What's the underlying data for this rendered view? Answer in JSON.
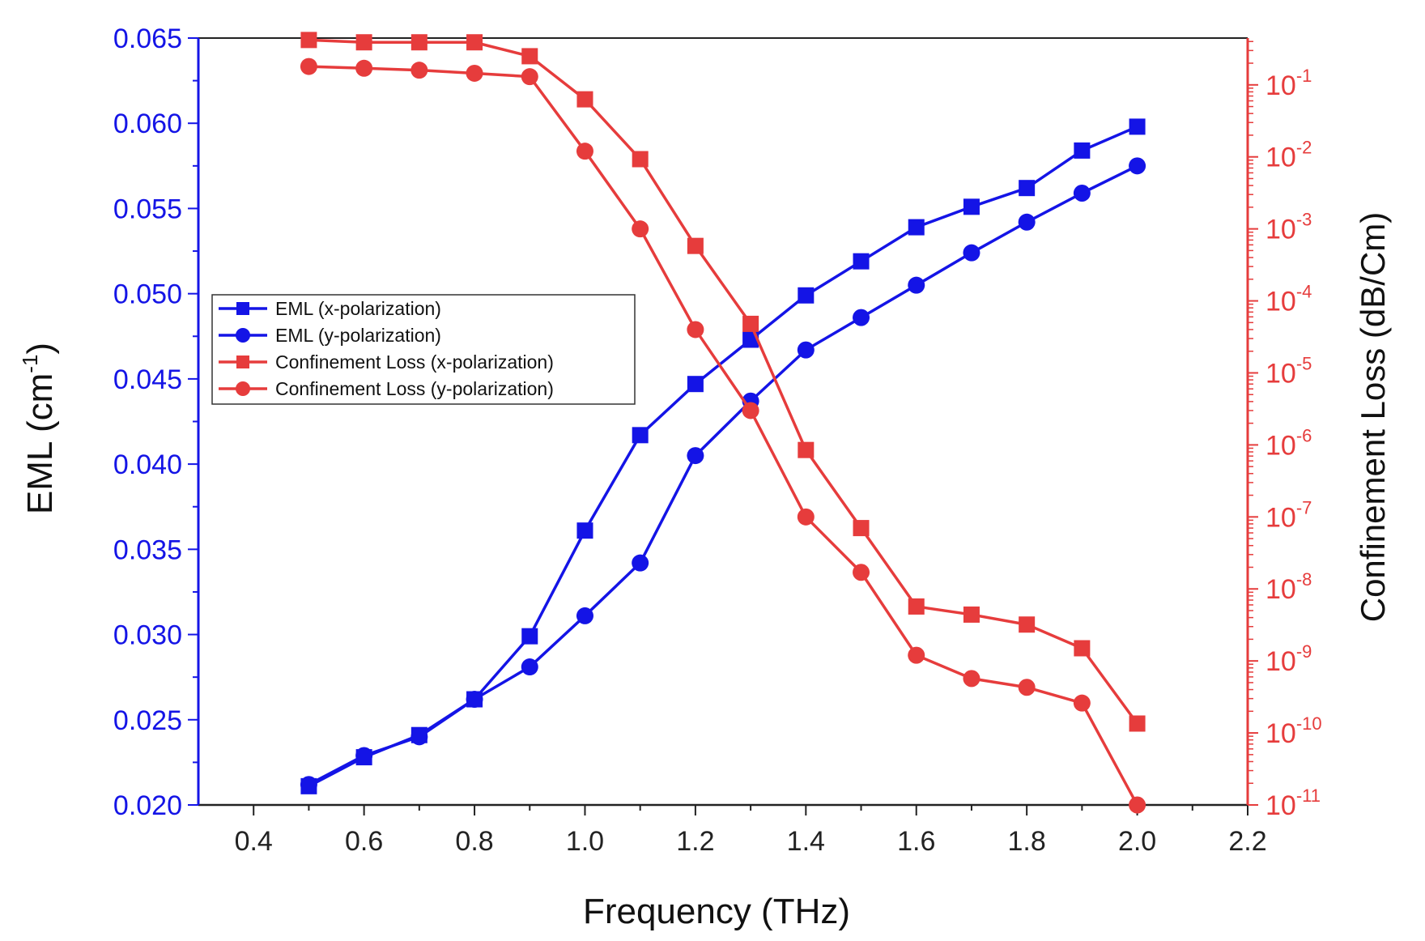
{
  "chart_data": {
    "type": "line",
    "xlabel": "Frequency (THz)",
    "ylabel_left": {
      "base": "EML (cm",
      "sup": "-1",
      "close": ")"
    },
    "ylabel_right": "Confinement Loss (dB/Cm)",
    "x_ticks": [
      "0.4",
      "0.6",
      "0.8",
      "1.0",
      "1.2",
      "1.4",
      "1.6",
      "1.8",
      "2.0",
      "2.2"
    ],
    "xlim": [
      0.3,
      2.2
    ],
    "y_left_ticks": [
      "0.020",
      "0.025",
      "0.030",
      "0.035",
      "0.040",
      "0.045",
      "0.050",
      "0.055",
      "0.060",
      "0.065"
    ],
    "ylim_left": [
      0.02,
      0.065
    ],
    "y_right_scale": "log",
    "y_right_tick_exponents": [
      "-11",
      "-10",
      "-9",
      "-8",
      "-7",
      "-6",
      "-5",
      "-4",
      "-3",
      "-2",
      "-1"
    ],
    "y_right_tick_base": "10",
    "ylim_right_log10": [
      -11,
      -0.35
    ],
    "legend_position": "center-left",
    "x": [
      0.5,
      0.6,
      0.7,
      0.8,
      0.9,
      1.0,
      1.1,
      1.2,
      1.3,
      1.4,
      1.5,
      1.6,
      1.7,
      1.8,
      1.9,
      2.0
    ],
    "series": [
      {
        "name": "EML (x-polarization)",
        "axis": "left",
        "marker": "square",
        "color": "#1414e6",
        "values": [
          0.0211,
          0.0228,
          0.0241,
          0.0262,
          0.0299,
          0.0361,
          0.0417,
          0.0447,
          0.0473,
          0.0499,
          0.0519,
          0.0539,
          0.0551,
          0.0562,
          0.0584,
          0.0598
        ]
      },
      {
        "name": "EML (y-polarization)",
        "axis": "left",
        "marker": "circle",
        "color": "#1414e6",
        "values": [
          0.0212,
          0.0229,
          0.024,
          0.0262,
          0.0281,
          0.0311,
          0.0342,
          0.0405,
          0.0437,
          0.0467,
          0.0486,
          0.0505,
          0.0524,
          0.0542,
          0.0559,
          0.0575
        ]
      },
      {
        "name": "Confinement Loss (x-polarization)",
        "axis": "right",
        "marker": "square",
        "color": "#e63c3c",
        "values": [
          0.42,
          0.39,
          0.39,
          0.39,
          0.25,
          0.063,
          0.0093,
          0.00058,
          4.8e-05,
          8.5e-07,
          7e-08,
          5.7e-09,
          4.4e-09,
          3.2e-09,
          1.5e-09,
          1.35e-10
        ]
      },
      {
        "name": "Confinement Loss (y-polarization)",
        "axis": "right",
        "marker": "circle",
        "color": "#e63c3c",
        "values": [
          0.18,
          0.17,
          0.16,
          0.145,
          0.13,
          0.012,
          0.001,
          4e-05,
          3e-06,
          1e-07,
          1.7e-08,
          1.2e-09,
          5.7e-10,
          4.3e-10,
          2.6e-10,
          1e-11
        ]
      }
    ]
  }
}
